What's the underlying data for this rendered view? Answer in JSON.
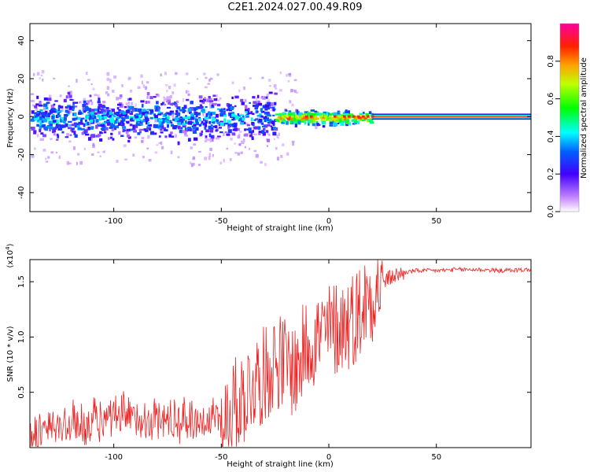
{
  "title": "C2E1.2024.027.00.49.R09",
  "colors": {
    "snr_line": "#ee2222",
    "background": "#ffffff"
  },
  "chart_data": [
    {
      "type": "heatmap",
      "xlabel": "Height of straight line (km)",
      "ylabel": "Frequency (Hz)",
      "xlim": [
        -139,
        94
      ],
      "ylim": [
        -50,
        49
      ],
      "x_ticks": [
        "-100",
        "-50",
        "0",
        "50"
      ],
      "y_ticks": [
        "-40",
        "-20",
        "0",
        "20",
        "40"
      ],
      "colorbar": {
        "label": "Normalized spectral amplitude",
        "range": [
          0,
          1
        ],
        "ticks": [
          "0.0",
          "0.2",
          "0.4",
          "0.6",
          "0.8"
        ]
      },
      "description_regions": [
        {
          "x_range": [
            -139,
            -25
          ],
          "freq_center": 0,
          "spread_hz": 12,
          "amplitude": 0.35
        },
        {
          "x_range": [
            -25,
            20
          ],
          "freq_center": 0,
          "spread_hz": 4,
          "amplitude": 0.75
        },
        {
          "x_range": [
            20,
            94
          ],
          "freq_center": 0,
          "spread_hz": 1,
          "amplitude": 0.95
        }
      ]
    },
    {
      "type": "line",
      "xlabel": "Height of straight line (km)",
      "ylabel": "SNR (10 * v/v)",
      "scale_label": "(x10",
      "scale_exp": "4",
      "xlim": [
        -139,
        94
      ],
      "ylim": [
        0,
        1.7
      ],
      "x_ticks": [
        "-100",
        "-50",
        "0",
        "50"
      ],
      "y_ticks": [
        "0.5",
        "1.0",
        "1.5"
      ],
      "series": [
        {
          "points": [
            [
              -139,
              0.04
            ],
            [
              -130,
              0.1
            ],
            [
              -120,
              0.13
            ],
            [
              -110,
              0.15
            ],
            [
              -100,
              0.18
            ],
            [
              -90,
              0.2
            ],
            [
              -80,
              0.18
            ],
            [
              -70,
              0.17
            ],
            [
              -60,
              0.18
            ],
            [
              -50,
              0.2
            ],
            [
              -45,
              0.35
            ],
            [
              -40,
              0.45
            ],
            [
              -35,
              0.6
            ],
            [
              -30,
              0.65
            ],
            [
              -25,
              0.8
            ],
            [
              -20,
              0.75
            ],
            [
              -15,
              0.7
            ],
            [
              -10,
              0.95
            ],
            [
              -5,
              1.0
            ],
            [
              0,
              1.05
            ],
            [
              5,
              1.1
            ],
            [
              10,
              1.15
            ],
            [
              15,
              1.25
            ],
            [
              20,
              1.4
            ],
            [
              25,
              1.5
            ],
            [
              30,
              1.55
            ],
            [
              35,
              1.58
            ],
            [
              40,
              1.6
            ],
            [
              50,
              1.6
            ],
            [
              60,
              1.61
            ],
            [
              70,
              1.61
            ],
            [
              80,
              1.6
            ],
            [
              94,
              1.61
            ]
          ]
        }
      ]
    }
  ]
}
